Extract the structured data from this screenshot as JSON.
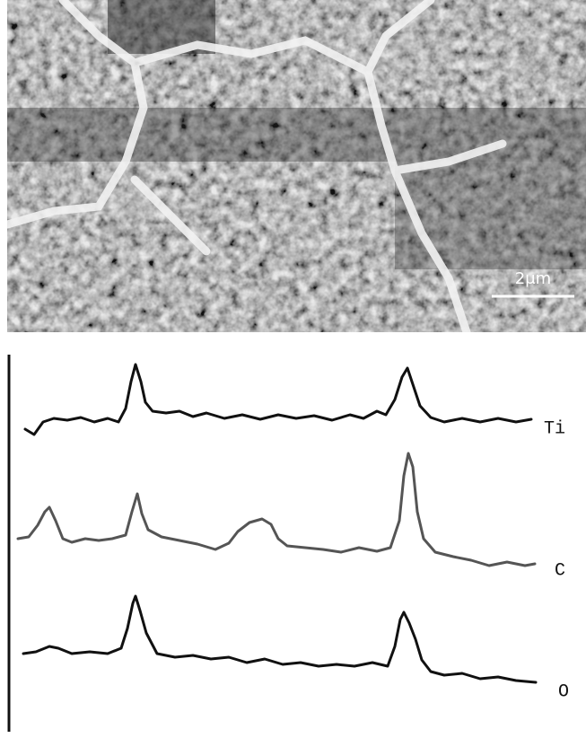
{
  "micrograph": {
    "scale_bar": "2μm"
  },
  "profiles": [
    {
      "label": "Ti"
    },
    {
      "label": "C"
    },
    {
      "label": "O"
    }
  ]
}
